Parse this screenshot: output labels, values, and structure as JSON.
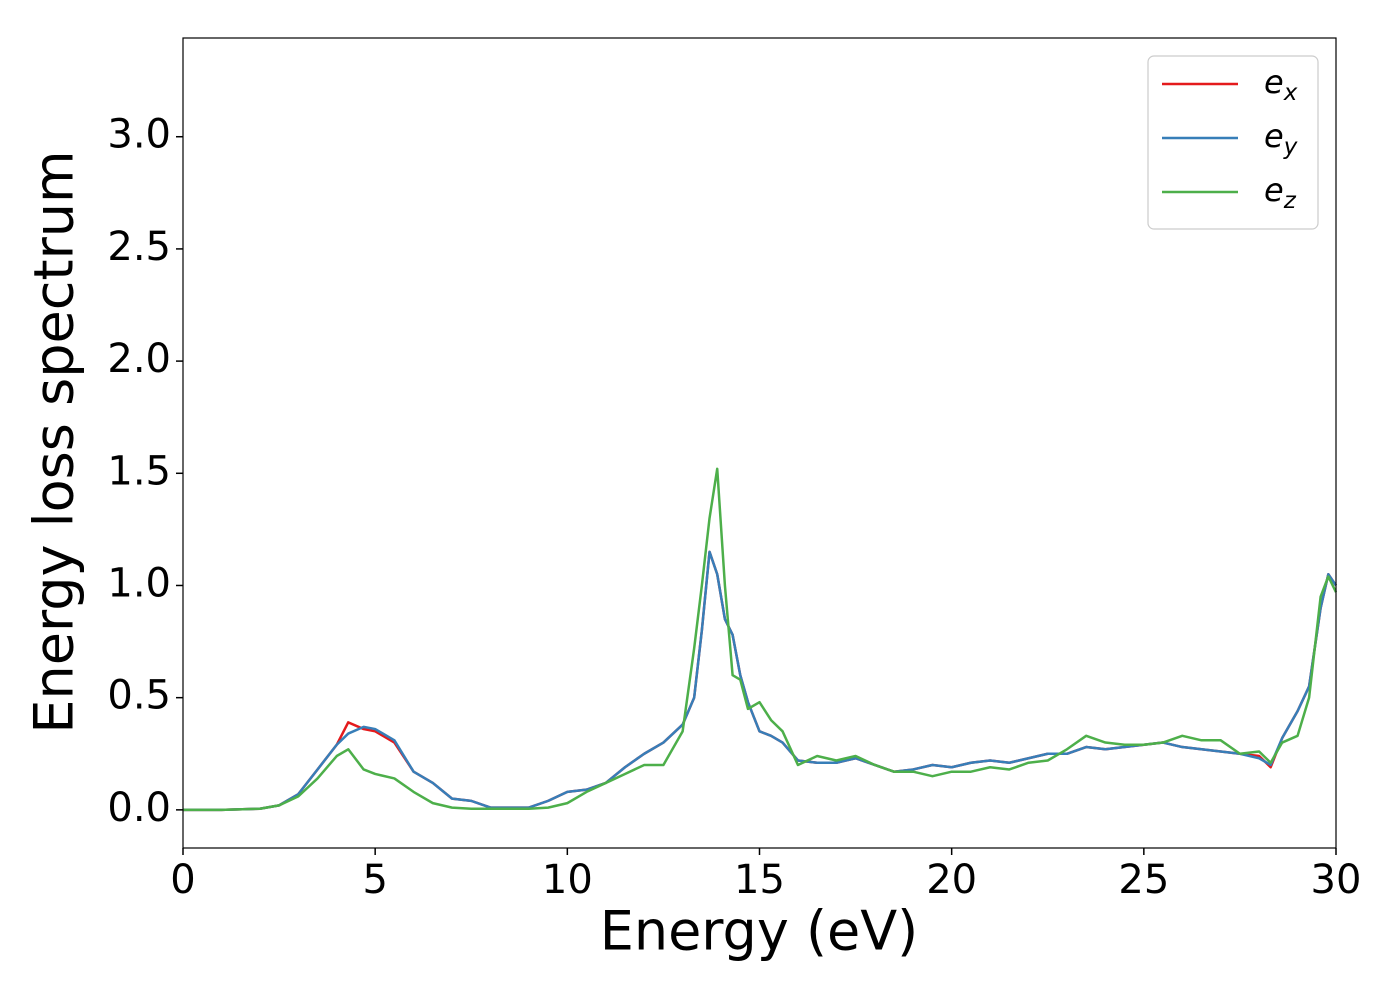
{
  "chart_data": {
    "type": "line",
    "x_label": "Energy (eV)",
    "y_label": "Energy loss spectrum",
    "x": [
      0,
      1,
      2,
      2.5,
      3,
      3.5,
      4,
      4.3,
      4.7,
      5,
      5.5,
      6,
      6.5,
      7,
      7.5,
      8,
      9,
      9.5,
      10,
      10.5,
      11,
      11.5,
      12,
      12.5,
      13,
      13.3,
      13.5,
      13.7,
      13.9,
      14.1,
      14.3,
      14.5,
      14.7,
      15,
      15.3,
      15.6,
      16,
      16.5,
      17,
      17.5,
      18,
      18.5,
      19,
      19.5,
      20,
      20.5,
      21,
      21.5,
      22,
      22.5,
      23,
      23.5,
      24,
      24.5,
      25,
      25.5,
      26,
      26.5,
      27,
      27.5,
      28,
      28.3,
      28.6,
      29,
      29.3,
      29.6,
      29.8,
      30
    ],
    "series": [
      {
        "name": "e_x",
        "color": "#e41a1c",
        "values": [
          0,
          0,
          0.005,
          0.02,
          0.07,
          0.18,
          0.29,
          0.39,
          0.36,
          0.35,
          0.3,
          0.17,
          0.12,
          0.05,
          0.04,
          0.01,
          0.01,
          0.04,
          0.08,
          0.09,
          0.12,
          0.19,
          0.25,
          0.3,
          0.38,
          0.5,
          0.8,
          1.15,
          1.05,
          0.85,
          0.78,
          0.6,
          0.48,
          0.35,
          0.33,
          0.3,
          0.22,
          0.21,
          0.21,
          0.23,
          0.2,
          0.17,
          0.18,
          0.2,
          0.19,
          0.21,
          0.22,
          0.21,
          0.23,
          0.25,
          0.25,
          0.28,
          0.27,
          0.28,
          0.29,
          0.3,
          0.28,
          0.27,
          0.26,
          0.25,
          0.24,
          0.19,
          0.32,
          0.44,
          0.55,
          0.9,
          1.05,
          1.0
        ]
      },
      {
        "name": "e_y",
        "color": "#377eb8",
        "values": [
          0,
          0,
          0.005,
          0.02,
          0.07,
          0.18,
          0.29,
          0.34,
          0.37,
          0.36,
          0.31,
          0.17,
          0.12,
          0.05,
          0.04,
          0.01,
          0.01,
          0.04,
          0.08,
          0.09,
          0.12,
          0.19,
          0.25,
          0.3,
          0.38,
          0.5,
          0.8,
          1.15,
          1.05,
          0.85,
          0.78,
          0.6,
          0.48,
          0.35,
          0.33,
          0.3,
          0.22,
          0.21,
          0.21,
          0.23,
          0.2,
          0.17,
          0.18,
          0.2,
          0.19,
          0.21,
          0.22,
          0.21,
          0.23,
          0.25,
          0.25,
          0.28,
          0.27,
          0.28,
          0.29,
          0.3,
          0.28,
          0.27,
          0.26,
          0.25,
          0.23,
          0.2,
          0.32,
          0.44,
          0.55,
          0.9,
          1.05,
          1.0
        ]
      },
      {
        "name": "e_z",
        "color": "#4daf4a",
        "values": [
          0,
          0,
          0.005,
          0.02,
          0.06,
          0.14,
          0.24,
          0.27,
          0.18,
          0.16,
          0.14,
          0.08,
          0.03,
          0.01,
          0.005,
          0.005,
          0.005,
          0.01,
          0.03,
          0.08,
          0.12,
          0.16,
          0.2,
          0.2,
          0.35,
          0.72,
          1.0,
          1.3,
          1.52,
          1.0,
          0.6,
          0.58,
          0.45,
          0.48,
          0.4,
          0.35,
          0.2,
          0.24,
          0.22,
          0.24,
          0.2,
          0.17,
          0.17,
          0.15,
          0.17,
          0.17,
          0.19,
          0.18,
          0.21,
          0.22,
          0.27,
          0.33,
          0.3,
          0.29,
          0.29,
          0.3,
          0.33,
          0.31,
          0.31,
          0.25,
          0.26,
          0.21,
          0.3,
          0.33,
          0.5,
          0.95,
          1.04,
          0.97
        ]
      }
    ],
    "xlim": [
      0,
      30
    ],
    "xticks": [
      0,
      5,
      10,
      15,
      20,
      25,
      30
    ],
    "ylim": [
      -0.17,
      3.44
    ],
    "yticks": [
      {
        "value": 0,
        "label": "0.0"
      },
      0.5,
      {
        "value": 1,
        "label": "1.0"
      },
      1.5,
      {
        "value": 2,
        "label": "2.0"
      },
      2.5,
      {
        "value": 3,
        "label": "3.0"
      }
    ],
    "legend": "upper right",
    "grid": false
  }
}
